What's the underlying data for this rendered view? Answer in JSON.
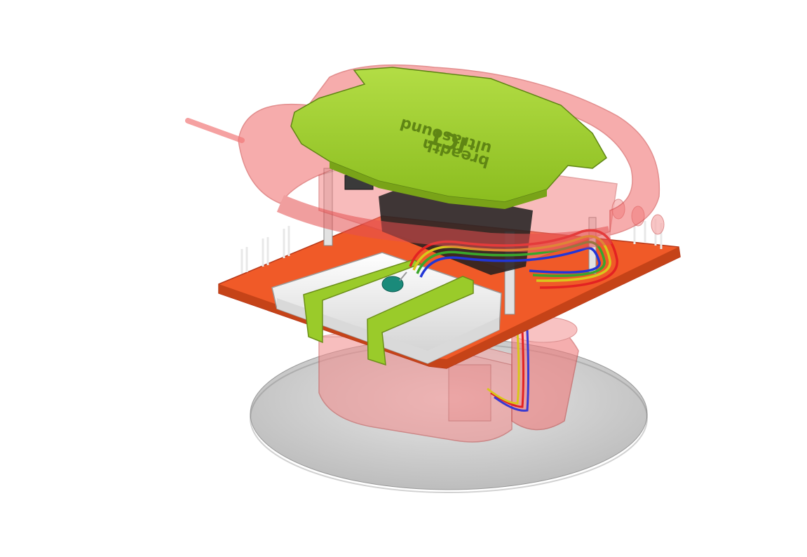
{
  "view": {
    "background": "#ffffff"
  },
  "model": {
    "lid_text": "ultrasound",
    "lid_text_line2": "ICT",
    "lid_text_line3": "breadth",
    "colors": {
      "pcb": "#f05a28",
      "lid": "#9acb2a",
      "battery": "#f2f2f2",
      "housing": "#f27a7a",
      "base": "#c8c8c8",
      "wire_red": "#e32222",
      "wire_blue": "#2236d6",
      "wire_yellow": "#d8c71c",
      "wire_green": "#3aa52b",
      "pins": "#e8e8e8",
      "component_dark": "#1e1e1e",
      "capacitor": "#1a8a7a"
    }
  }
}
